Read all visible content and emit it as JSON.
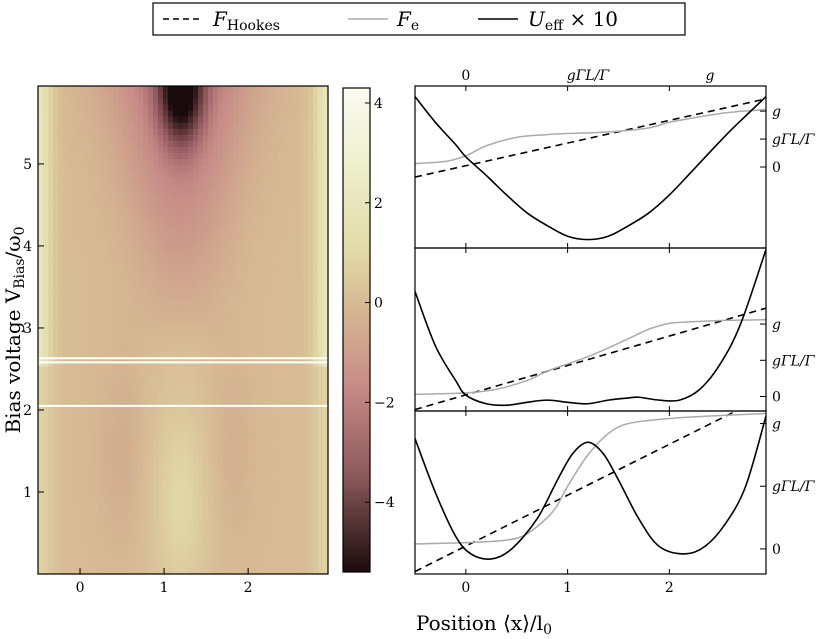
{
  "legend": {
    "items": [
      {
        "base": "F",
        "sub": "Hookes",
        "suffix": "",
        "style": "dashed",
        "color": "#000000"
      },
      {
        "base": "F",
        "sub": "e",
        "suffix": "",
        "style": "solid",
        "color": "#aaaaaa"
      },
      {
        "base": "U",
        "sub": "eff",
        "suffix": " × 10",
        "style": "solid",
        "color": "#000000"
      }
    ]
  },
  "axis_labels": {
    "y_base": "Bias voltage V",
    "y_sub": "Bias",
    "y_tail": "/ω",
    "y_tail_sub": "0",
    "x_main": "Position ⟨x⟩/l",
    "x_sub": "0"
  },
  "heatmap": {
    "x_ticks": [
      "0",
      "1",
      "2"
    ],
    "y_ticks": [
      "1",
      "2",
      "3",
      "4",
      "5"
    ],
    "colorbar_ticks": [
      "4",
      "2",
      "0",
      "−2",
      "−4"
    ],
    "marked_voltages": [
      2.05,
      2.58,
      2.63
    ]
  },
  "right_panels": {
    "top_x_ticks": [
      "0",
      "gΓL/Γ",
      "g"
    ],
    "bottom_x_ticks": [
      "0",
      "1",
      "2"
    ],
    "right_ticks": {
      "panel1": [
        "g",
        "gΓL/Γ",
        "0"
      ],
      "panel2": [
        "g",
        "gΓL/Γ",
        "0"
      ],
      "panel3": [
        "g",
        "gΓL/Γ",
        "0"
      ]
    }
  },
  "chart_data": [
    {
      "type": "heatmap",
      "xlabel": "",
      "ylabel": "Bias voltage V_Bias/ω_0",
      "xlim": [
        -0.5,
        2.95
      ],
      "ylim": [
        0,
        5.95
      ],
      "colorbar": {
        "range": [
          -5.4,
          4.3
        ],
        "ticks": [
          4,
          2,
          0,
          -2,
          -4
        ]
      },
      "horizontal_lines_y": [
        2.05,
        2.58,
        2.63
      ]
    },
    {
      "type": "line",
      "panel": "top",
      "xlabel": "",
      "xlim": [
        -0.5,
        2.95
      ],
      "series": [
        {
          "name": "F_Hookes",
          "style": "dashed",
          "x": [
            -0.5,
            2.95
          ],
          "y": [
            -0.18,
            1.22
          ]
        },
        {
          "name": "F_e",
          "style": "solid",
          "x": [
            -0.5,
            -0.2,
            0,
            0.2,
            0.5,
            0.8,
            1.0,
            1.2,
            1.5,
            1.8,
            2.0,
            2.3,
            2.6,
            2.95
          ],
          "y": [
            0.06,
            0.1,
            0.2,
            0.38,
            0.53,
            0.58,
            0.6,
            0.61,
            0.64,
            0.7,
            0.8,
            0.9,
            0.98,
            1.03
          ]
        },
        {
          "name": "U_eff × 10",
          "style": "solid",
          "x": [
            -0.5,
            -0.3,
            -0.1,
            0,
            0.2,
            0.4,
            0.6,
            0.8,
            1.0,
            1.2,
            1.4,
            1.6,
            1.8,
            2.0,
            2.2,
            2.4,
            2.6,
            2.8,
            2.95
          ],
          "y": [
            1.26,
            0.8,
            0.4,
            0.18,
            -0.15,
            -0.5,
            -0.82,
            -1.05,
            -1.24,
            -1.3,
            -1.24,
            -1.05,
            -0.82,
            -0.5,
            -0.12,
            0.27,
            0.65,
            1.0,
            1.26
          ]
        }
      ]
    },
    {
      "type": "line",
      "panel": "middle",
      "xlabel": "",
      "xlim": [
        -0.5,
        2.95
      ],
      "series": [
        {
          "name": "F_Hookes",
          "style": "dashed",
          "x": [
            -0.5,
            2.95
          ],
          "y": [
            -0.18,
            1.22
          ]
        },
        {
          "name": "F_e",
          "style": "solid",
          "x": [
            -0.5,
            0,
            0.3,
            0.6,
            0.8,
            1.0,
            1.2,
            1.4,
            1.6,
            1.8,
            2.0,
            2.2,
            2.5,
            2.95
          ],
          "y": [
            0.03,
            0.05,
            0.1,
            0.22,
            0.35,
            0.45,
            0.55,
            0.67,
            0.8,
            0.93,
            1.01,
            1.03,
            1.05,
            1.06
          ]
        },
        {
          "name": "U_eff × 10",
          "style": "solid",
          "x": [
            -0.5,
            -0.3,
            -0.1,
            0,
            0.2,
            0.4,
            0.6,
            0.8,
            1.0,
            1.2,
            1.4,
            1.6,
            1.7,
            1.9,
            2.1,
            2.3,
            2.5,
            2.7,
            2.95
          ],
          "y": [
            1.45,
            0.7,
            0.22,
            0.02,
            -0.1,
            -0.12,
            -0.08,
            -0.05,
            -0.08,
            -0.1,
            -0.05,
            -0.02,
            -0.01,
            -0.05,
            -0.05,
            0.1,
            0.45,
            1.0,
            2.03
          ]
        }
      ]
    },
    {
      "type": "line",
      "panel": "bottom",
      "xlabel": "Position ⟨x⟩/l_0",
      "xlim": [
        -0.5,
        2.95
      ],
      "series": [
        {
          "name": "F_Hookes",
          "style": "dashed",
          "x": [
            -0.5,
            2.95
          ],
          "y": [
            -0.18,
            1.22
          ]
        },
        {
          "name": "F_e",
          "style": "solid",
          "x": [
            -0.5,
            0,
            0.4,
            0.6,
            0.8,
            0.9,
            1.0,
            1.2,
            1.4,
            1.6,
            2.0,
            2.4,
            2.95
          ],
          "y": [
            0.04,
            0.05,
            0.07,
            0.12,
            0.25,
            0.35,
            0.5,
            0.75,
            0.92,
            1.0,
            1.04,
            1.06,
            1.08
          ]
        },
        {
          "name": "U_eff × 10",
          "style": "solid",
          "x": [
            -0.5,
            -0.3,
            -0.1,
            0.05,
            0.25,
            0.45,
            0.7,
            0.9,
            1.05,
            1.2,
            1.35,
            1.5,
            1.7,
            1.9,
            2.15,
            2.35,
            2.55,
            2.75,
            2.95
          ],
          "y": [
            0.88,
            0.45,
            0.1,
            -0.04,
            -0.08,
            0.0,
            0.24,
            0.55,
            0.76,
            0.85,
            0.76,
            0.55,
            0.24,
            0.02,
            -0.04,
            0.02,
            0.2,
            0.5,
            1.06
          ]
        }
      ]
    }
  ]
}
